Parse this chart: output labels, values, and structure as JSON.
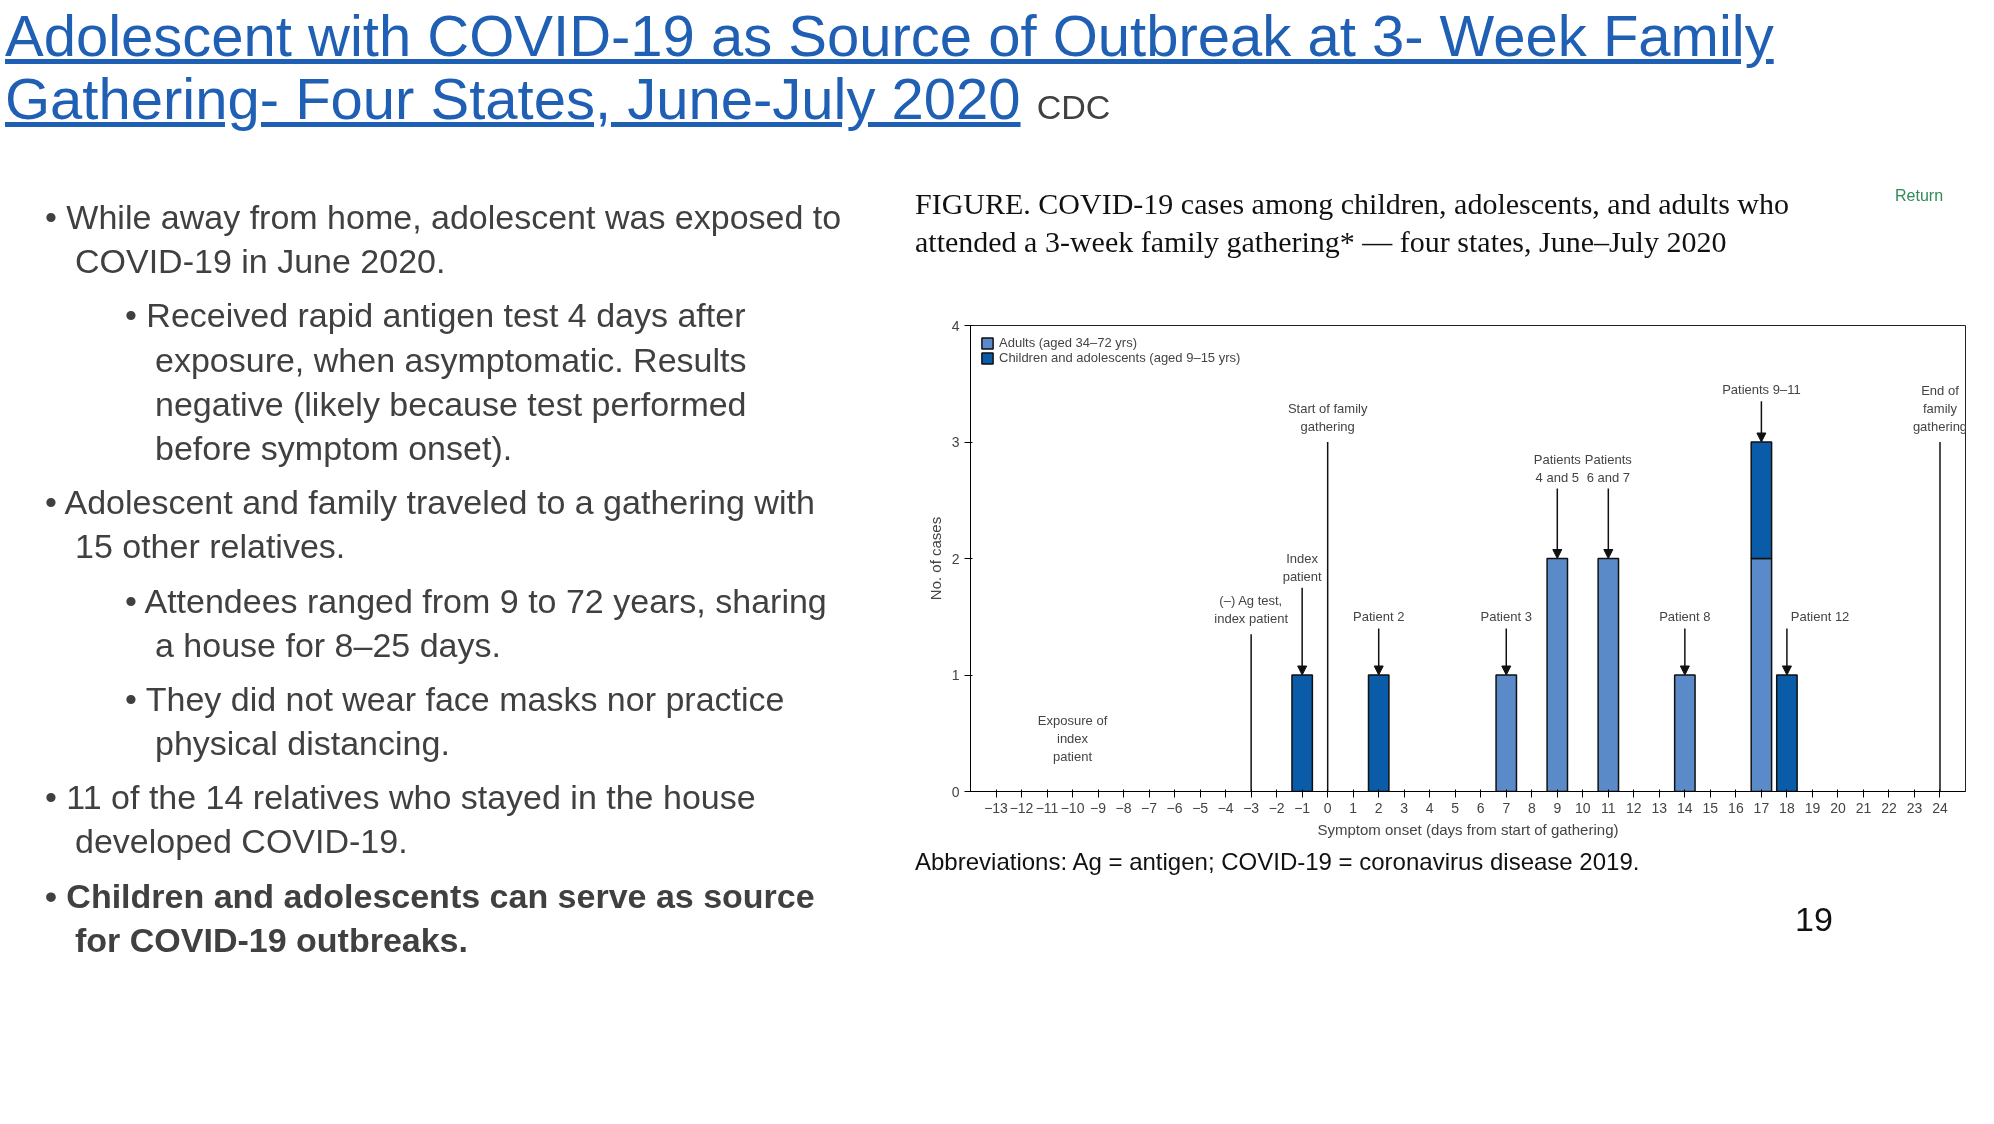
{
  "chart_data": {
    "type": "bar",
    "title": "Adolescent with COVID-19 as Source of Outbreak at 3- Week Family Gathering- Four States, June-July 2020",
    "subtitle": "FIGURE. COVID-19 cases among children, adolescents, and adults who attended a 3-week family gathering* — four states, June–July 2020",
    "xlabel": "Symptom onset (days from start of gathering)",
    "ylabel": "No. of cases",
    "x": [
      -1,
      2,
      7,
      9,
      11,
      14,
      17,
      18
    ],
    "series": [
      {
        "name": "Adults (aged 34–72 yrs)",
        "color": "#5b8ac8",
        "values": [
          null,
          null,
          1,
          2,
          2,
          1,
          2,
          null
        ]
      },
      {
        "name": "Children and adolescents (aged 9–15 yrs)",
        "color": "#0a5ba8",
        "values": [
          1,
          1,
          null,
          null,
          null,
          null,
          1,
          1
        ]
      }
    ],
    "stacked": true,
    "xlim": [
      -14,
      25
    ],
    "xticks": [
      -13,
      -12,
      -11,
      -10,
      -9,
      -8,
      -7,
      -6,
      -5,
      -4,
      -3,
      -2,
      -1,
      0,
      1,
      2,
      3,
      4,
      5,
      6,
      7,
      8,
      9,
      10,
      11,
      12,
      13,
      14,
      15,
      16,
      17,
      18,
      19,
      20,
      21,
      22,
      23,
      24
    ],
    "ylim": [
      0,
      4
    ],
    "yticks": [
      0,
      1,
      2,
      3,
      4
    ],
    "grid": false,
    "legend": "top left",
    "ref_lines": [
      {
        "axis": "x",
        "value": -3,
        "label": "(–) Ag test, index patient",
        "color": "#111111"
      },
      {
        "axis": "x",
        "value": 0,
        "label": "Start of family gathering",
        "color": "#111111"
      },
      {
        "axis": "x",
        "value": 24,
        "label": "End of family gathering",
        "color": "#111111"
      }
    ],
    "annotations": [
      {
        "text": "Index patient",
        "x": -1,
        "y": 1
      },
      {
        "text": "Patient 2",
        "x": 2,
        "y": 1
      },
      {
        "text": "Patient 3",
        "x": 7,
        "y": 1
      },
      {
        "text": "Patients 4 and 5",
        "x": 9,
        "y": 2
      },
      {
        "text": "Patients 6 and 7",
        "x": 11,
        "y": 2
      },
      {
        "text": "Patient 8",
        "x": 14,
        "y": 1
      },
      {
        "text": "Patients 9–11",
        "x": 17,
        "y": 3
      },
      {
        "text": "Patient 12",
        "x": 18,
        "y": 1
      },
      "Exposure of index patient",
      "CDC",
      "Return",
      "• While away from home, adolescent was exposed to COVID-19 in June 2020.",
      "• Received rapid antigen test 4 days after exposure, when asymptomatic. Results negative (likely because test performed before symptom onset).",
      "• Adolescent and family traveled to a gathering with 15 other relatives.",
      "• Attendees ranged from 9 to 72 years, sharing a house for 8–25 days.",
      "• They did not wear face masks nor practice physical distancing.",
      "• 11 of the 14 relatives who stayed in the house developed COVID-19.",
      "• Children and adolescents can serve as source for COVID-19 outbreaks.",
      "Abbreviations: Ag = antigen; COVID-19 = coronavirus disease 2019.",
      "19"
    ]
  }
}
